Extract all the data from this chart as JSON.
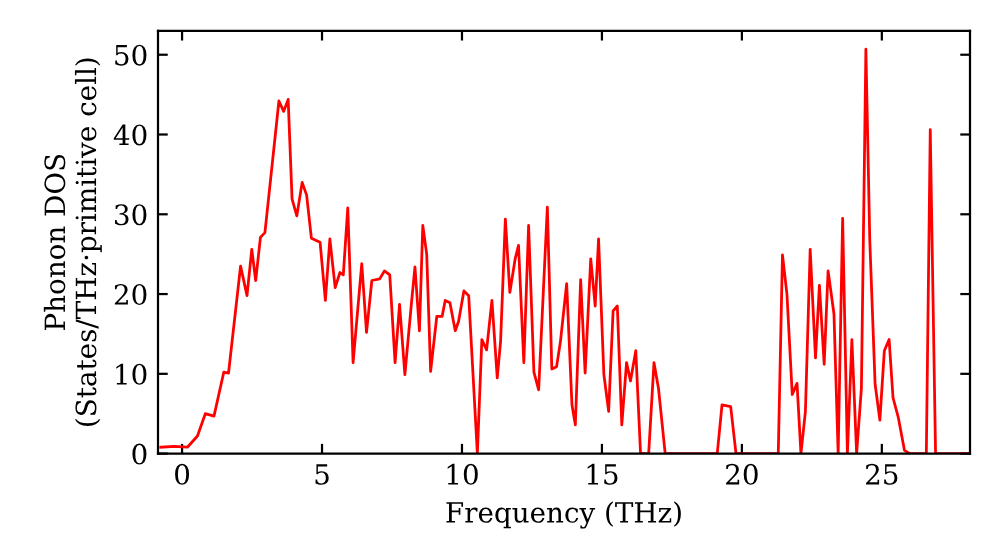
{
  "chart_data": {
    "type": "line",
    "xlabel": "Frequency (THz)",
    "ylabel": "Phonon DOS\n(States/THz·primitive cell)",
    "xlim": [
      -0.86,
      28.15
    ],
    "ylim": [
      0,
      53
    ],
    "xticks": [
      0,
      5,
      10,
      15,
      20,
      25
    ],
    "yticks": [
      0,
      10,
      20,
      30,
      40,
      50
    ],
    "grid": false,
    "legend": false,
    "marker": "none",
    "line_style": "solid",
    "series": [
      {
        "color": "#ff0000",
        "x": [
          -0.76,
          -0.28,
          0.19,
          0.55,
          0.83,
          1.14,
          1.49,
          1.66,
          2.09,
          2.32,
          2.49,
          2.63,
          2.8,
          2.96,
          3.46,
          3.63,
          3.79,
          3.93,
          4.1,
          4.29,
          4.45,
          4.62,
          4.93,
          5.12,
          5.28,
          5.47,
          5.64,
          5.76,
          5.92,
          6.11,
          6.42,
          6.59,
          6.78,
          7.06,
          7.23,
          7.42,
          7.61,
          7.77,
          7.96,
          8.18,
          8.32,
          8.48,
          8.6,
          8.74,
          8.88,
          9.1,
          9.29,
          9.4,
          9.57,
          9.76,
          9.88,
          10.07,
          10.24,
          10.55,
          10.71,
          10.88,
          11.07,
          11.26,
          11.38,
          11.55,
          11.71,
          11.9,
          12.02,
          12.21,
          12.38,
          12.57,
          12.74,
          13.05,
          13.21,
          13.38,
          13.52,
          13.74,
          13.93,
          14.05,
          14.24,
          14.4,
          14.6,
          14.76,
          14.88,
          15.07,
          15.24,
          15.4,
          15.55,
          15.71,
          15.88,
          16.02,
          16.21,
          16.38,
          16.67,
          16.86,
          17.02,
          17.26,
          18.45,
          19.12,
          19.29,
          19.6,
          19.79,
          21.3,
          21.45,
          21.61,
          21.8,
          21.97,
          22.11,
          22.27,
          22.44,
          22.63,
          22.77,
          22.94,
          23.08,
          23.29,
          23.44,
          23.6,
          23.77,
          23.93,
          24.1,
          24.27,
          24.43,
          24.57,
          24.76,
          24.93,
          25.09,
          25.26,
          25.4,
          25.59,
          25.81,
          26.0,
          26.59,
          26.73,
          26.92,
          28.12
        ],
        "values": [
          0.8,
          0.9,
          0.8,
          2.2,
          5.0,
          4.7,
          10.2,
          10.1,
          23.5,
          19.8,
          25.6,
          21.7,
          27.1,
          27.7,
          44.2,
          42.9,
          44.4,
          31.9,
          29.8,
          34.0,
          32.4,
          27.0,
          26.5,
          19.2,
          26.9,
          20.8,
          22.7,
          22.4,
          30.8,
          11.4,
          23.8,
          15.2,
          21.7,
          21.9,
          22.9,
          22.4,
          11.4,
          18.7,
          9.9,
          18.3,
          23.4,
          15.4,
          28.6,
          25.0,
          10.3,
          17.2,
          17.2,
          19.2,
          18.9,
          15.4,
          16.6,
          20.4,
          19.8,
          0,
          14.3,
          13.0,
          19.2,
          9.5,
          14.1,
          29.4,
          20.2,
          24.4,
          26.1,
          11.4,
          28.6,
          10.2,
          8.0,
          30.9,
          10.6,
          10.9,
          14.1,
          21.3,
          6.1,
          3.6,
          21.8,
          10.1,
          24.4,
          18.5,
          26.9,
          9.9,
          5.3,
          17.9,
          18.5,
          3.6,
          11.4,
          9.1,
          12.9,
          0,
          0,
          11.4,
          8.2,
          0,
          0,
          0,
          6.1,
          5.9,
          0,
          0,
          24.9,
          20.0,
          7.4,
          8.8,
          0,
          5.3,
          25.6,
          12.0,
          21.1,
          11.2,
          22.9,
          17.5,
          0,
          29.5,
          0,
          14.3,
          0,
          8.2,
          50.7,
          26.7,
          8.7,
          4.2,
          12.9,
          14.3,
          7.0,
          4.5,
          0.4,
          0,
          0,
          40.6,
          0,
          0
        ]
      }
    ]
  }
}
